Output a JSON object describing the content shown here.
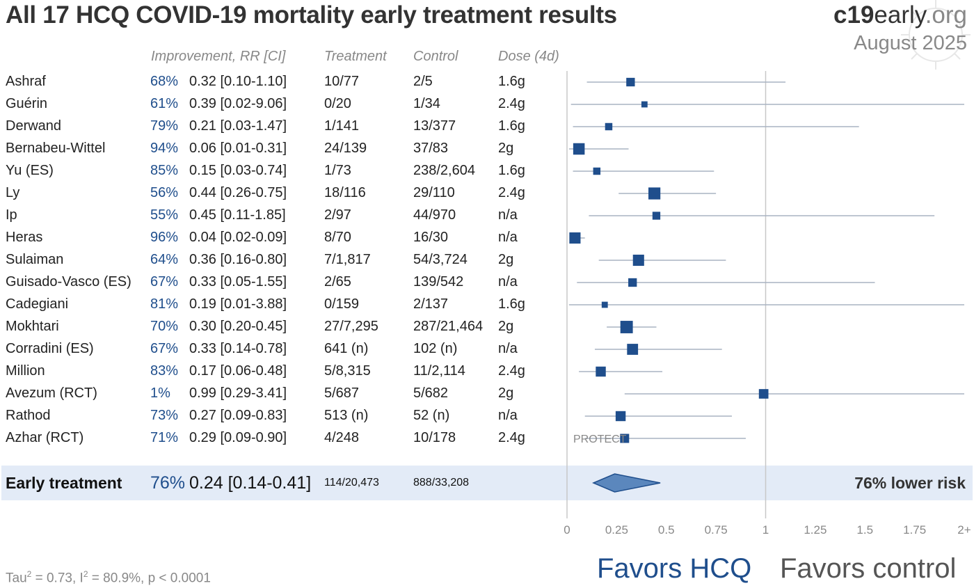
{
  "title": "All 17 HCQ COVID-19 mortality early treatment results",
  "brand": {
    "bold": "c19",
    "normal": "early",
    "suffix": ".org"
  },
  "date": "August 2025",
  "headers": {
    "improvement": "Improvement, RR [CI]",
    "treatment": "Treatment",
    "control": "Control",
    "dose": "Dose (4d)"
  },
  "chart_data": {
    "type": "forest",
    "xlim": [
      0,
      2
    ],
    "ticks": [
      "0",
      "0.25",
      "0.5",
      "0.75",
      "1",
      "1.25",
      "1.5",
      "1.75",
      "2+"
    ],
    "colors": {
      "marker": "#1f4e8c",
      "diamond": "#5b87bd",
      "ci": "#a8b3c2",
      "summary_bg": "#e3ebf7"
    },
    "studies": [
      {
        "name": "Ashraf",
        "improvement": "68%",
        "rr_text": "0.32 [0.10-1.10]",
        "rr": 0.32,
        "lo": 0.1,
        "hi": 1.1,
        "treatment": "10/77",
        "control": "2/5",
        "dose": "1.6g",
        "weight": 0.45
      },
      {
        "name": "Guérin",
        "improvement": "61%",
        "rr_text": "0.39 [0.02-9.06]",
        "rr": 0.39,
        "lo": 0.02,
        "hi": 9.06,
        "treatment": "0/20",
        "control": "1/34",
        "dose": "2.4g",
        "weight": 0.2
      },
      {
        "name": "Derwand",
        "improvement": "79%",
        "rr_text": "0.21 [0.03-1.47]",
        "rr": 0.21,
        "lo": 0.03,
        "hi": 1.47,
        "treatment": "1/141",
        "control": "13/377",
        "dose": "1.6g",
        "weight": 0.32
      },
      {
        "name": "Bernabeu-Wittel",
        "improvement": "94%",
        "rr_text": "0.06 [0.01-0.31]",
        "rr": 0.06,
        "lo": 0.01,
        "hi": 0.31,
        "treatment": "24/139",
        "control": "37/83",
        "dose": "2g",
        "weight": 0.75
      },
      {
        "name": "Yu (ES)",
        "improvement": "85%",
        "rr_text": "0.15 [0.03-0.74]",
        "rr": 0.15,
        "lo": 0.03,
        "hi": 0.74,
        "treatment": "1/73",
        "control": "238/2,604",
        "dose": "1.6g",
        "weight": 0.32
      },
      {
        "name": "Ly",
        "improvement": "56%",
        "rr_text": "0.44 [0.26-0.75]",
        "rr": 0.44,
        "lo": 0.26,
        "hi": 0.75,
        "treatment": "18/116",
        "control": "29/110",
        "dose": "2.4g",
        "weight": 0.8
      },
      {
        "name": "Ip",
        "improvement": "55%",
        "rr_text": "0.45 [0.11-1.85]",
        "rr": 0.45,
        "lo": 0.11,
        "hi": 1.85,
        "treatment": "2/97",
        "control": "44/970",
        "dose": "n/a",
        "weight": 0.38
      },
      {
        "name": "Heras",
        "improvement": "96%",
        "rr_text": "0.04 [0.02-0.09]",
        "rr": 0.04,
        "lo": 0.02,
        "hi": 0.09,
        "treatment": "8/70",
        "control": "16/30",
        "dose": "n/a",
        "weight": 0.72
      },
      {
        "name": "Sulaiman",
        "improvement": "64%",
        "rr_text": "0.36 [0.16-0.80]",
        "rr": 0.36,
        "lo": 0.16,
        "hi": 0.8,
        "treatment": "7/1,817",
        "control": "54/3,724",
        "dose": "2g",
        "weight": 0.72
      },
      {
        "name": "Guisado-Vasco (ES)",
        "improvement": "67%",
        "rr_text": "0.33 [0.05-1.55]",
        "rr": 0.33,
        "lo": 0.05,
        "hi": 1.55,
        "treatment": "2/65",
        "control": "139/542",
        "dose": "n/a",
        "weight": 0.45
      },
      {
        "name": "Cadegiani",
        "improvement": "81%",
        "rr_text": "0.19 [0.01-3.88]",
        "rr": 0.19,
        "lo": 0.01,
        "hi": 3.88,
        "treatment": "0/159",
        "control": "2/137",
        "dose": "1.6g",
        "weight": 0.2
      },
      {
        "name": "Mokhtari",
        "improvement": "70%",
        "rr_text": "0.30 [0.20-0.45]",
        "rr": 0.3,
        "lo": 0.2,
        "hi": 0.45,
        "treatment": "27/7,295",
        "control": "287/21,464",
        "dose": "2g",
        "weight": 0.85
      },
      {
        "name": "Corradini (ES)",
        "improvement": "67%",
        "rr_text": "0.33 [0.14-0.78]",
        "rr": 0.33,
        "lo": 0.14,
        "hi": 0.78,
        "treatment": "641 (n)",
        "control": "102 (n)",
        "dose": "n/a",
        "weight": 0.7
      },
      {
        "name": "Million",
        "improvement": "83%",
        "rr_text": "0.17 [0.06-0.48]",
        "rr": 0.17,
        "lo": 0.06,
        "hi": 0.48,
        "treatment": "5/8,315",
        "control": "11/2,114",
        "dose": "2.4g",
        "weight": 0.6
      },
      {
        "name": "Avezum (RCT)",
        "improvement": "1%",
        "rr_text": "0.99 [0.29-3.41]",
        "rr": 0.99,
        "lo": 0.29,
        "hi": 3.41,
        "treatment": "5/687",
        "control": "5/682",
        "dose": "2g",
        "weight": 0.55
      },
      {
        "name": "Rathod",
        "improvement": "73%",
        "rr_text": "0.27 [0.09-0.83]",
        "rr": 0.27,
        "lo": 0.09,
        "hi": 0.83,
        "treatment": "513 (n)",
        "control": "52 (n)",
        "dose": "n/a",
        "weight": 0.6
      },
      {
        "name": "Azhar (RCT)",
        "improvement": "71%",
        "rr_text": "0.29 [0.09-0.90]",
        "rr": 0.29,
        "lo": 0.09,
        "hi": 0.9,
        "treatment": "4/248",
        "control": "10/178",
        "dose": "2.4g",
        "weight": 0.5,
        "annotation": "PROTECT"
      }
    ],
    "summary": {
      "name": "Early treatment",
      "improvement": "76%",
      "rr_text": "0.24 [0.14-0.41]",
      "rr": 0.24,
      "lo": 0.14,
      "hi": 0.41,
      "treatment": "114/20,473",
      "control": "888/33,208",
      "result": "76% lower risk"
    }
  },
  "favors": {
    "left": "Favors HCQ",
    "right": "Favors control"
  },
  "stats": {
    "tau_label": "Tau",
    "tau_sup": "2",
    "tau_rest": " = 0.73, I",
    "i_sup": "2",
    "i_rest": " = 80.9%, p < 0.0001"
  }
}
